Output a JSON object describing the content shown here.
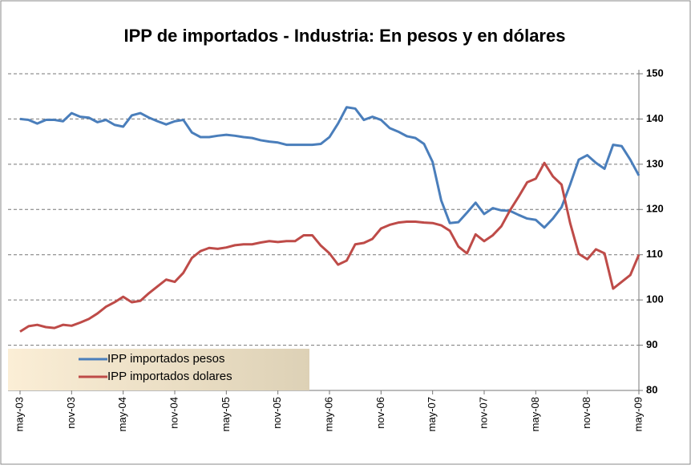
{
  "chart_data": {
    "type": "line",
    "title": "IPP de importados  - Industria: En pesos y en dólares",
    "categories": [
      "may-03",
      null,
      null,
      null,
      null,
      null,
      "nov-03",
      null,
      null,
      null,
      null,
      null,
      "may-04",
      null,
      null,
      null,
      null,
      null,
      "nov-04",
      null,
      null,
      null,
      null,
      null,
      "may-05",
      null,
      null,
      null,
      null,
      null,
      "nov-05",
      null,
      null,
      null,
      null,
      null,
      "may-06",
      null,
      null,
      null,
      null,
      null,
      "nov-06",
      null,
      null,
      null,
      null,
      null,
      "may-07",
      null,
      null,
      null,
      null,
      null,
      "nov-07",
      null,
      null,
      null,
      null,
      null,
      "may-08",
      null,
      null,
      null,
      null,
      null,
      "nov-08",
      null,
      null,
      null,
      null,
      null,
      "may-09"
    ],
    "series": [
      {
        "name": "IPP importados pesos",
        "color": "#4a7ebb",
        "values": [
          140,
          139.8,
          139,
          139.8,
          139.8,
          139.5,
          141.3,
          140.5,
          140.3,
          139.3,
          139.8,
          138.7,
          138.3,
          140.8,
          141.3,
          140.3,
          139.5,
          138.8,
          139.5,
          139.8,
          137,
          136,
          136,
          136.3,
          136.5,
          136.3,
          136,
          135.8,
          135.3,
          135,
          134.8,
          134.3,
          134.3,
          134.3,
          134.3,
          134.5,
          136,
          139,
          142.6,
          142.3,
          139.8,
          140.5,
          139.8,
          138,
          137.2,
          136.2,
          135.8,
          134.5,
          130.5,
          122,
          117,
          117.2,
          119.3,
          121.5,
          119,
          120.3,
          119.8,
          119.7,
          118.8,
          118,
          117.7,
          116,
          118,
          120.5,
          125.5,
          131,
          132,
          130.3,
          129,
          134.3,
          134,
          131,
          127.5
        ]
      },
      {
        "name": "IPP importados dolares",
        "color": "#be4b48",
        "values": [
          93,
          94.2,
          94.5,
          94,
          93.8,
          94.5,
          94.3,
          95,
          95.8,
          97,
          98.5,
          99.5,
          100.7,
          99.5,
          99.8,
          101.5,
          103,
          104.5,
          104,
          106,
          109.3,
          110.8,
          111.5,
          111.3,
          111.6,
          112.1,
          112.3,
          112.3,
          112.7,
          113,
          112.8,
          113,
          113,
          114.3,
          114.3,
          112,
          110.3,
          107.8,
          108.7,
          112.3,
          112.6,
          113.5,
          115.8,
          116.6,
          117.1,
          117.3,
          117.3,
          117.1,
          117,
          116.5,
          115.3,
          111.8,
          110.3,
          114.5,
          113,
          114.3,
          116.3,
          119.8,
          122.8,
          126,
          126.8,
          130.3,
          127.3,
          125.5,
          117,
          110.2,
          109,
          111.2,
          110.3,
          102.5,
          104,
          105.5,
          110
        ]
      }
    ],
    "ylim": [
      80,
      150
    ],
    "yticks": [
      80,
      90,
      100,
      110,
      120,
      130,
      140,
      150
    ],
    "grid": true
  }
}
